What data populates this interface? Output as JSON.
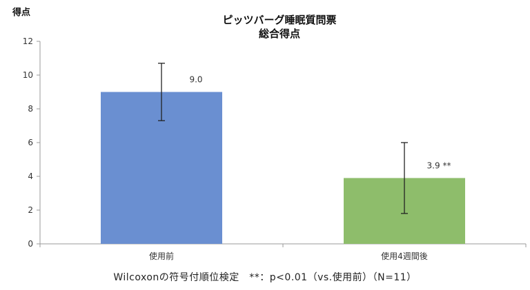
{
  "chart_data": {
    "type": "bar",
    "title": [
      "ピッツバーグ睡眠質問票",
      "総合得点"
    ],
    "ylabel": "得点",
    "xlabel": "",
    "ylim": [
      0,
      12
    ],
    "yticks": [
      0,
      2,
      4,
      6,
      8,
      10,
      12
    ],
    "categories": [
      "使用前",
      "使用4週間後"
    ],
    "values": [
      9.0,
      3.9
    ],
    "error_low": [
      7.3,
      1.8
    ],
    "error_high": [
      10.7,
      6.0
    ],
    "data_labels": [
      "9.0",
      "3.9 **"
    ],
    "colors": [
      "#6a8fd1",
      "#8ebd6b"
    ],
    "grid": false,
    "legend": "none"
  },
  "footnote": "Wilcoxonの符号付順位検定　**：p<0.01（vs.使用前）（N=11）"
}
